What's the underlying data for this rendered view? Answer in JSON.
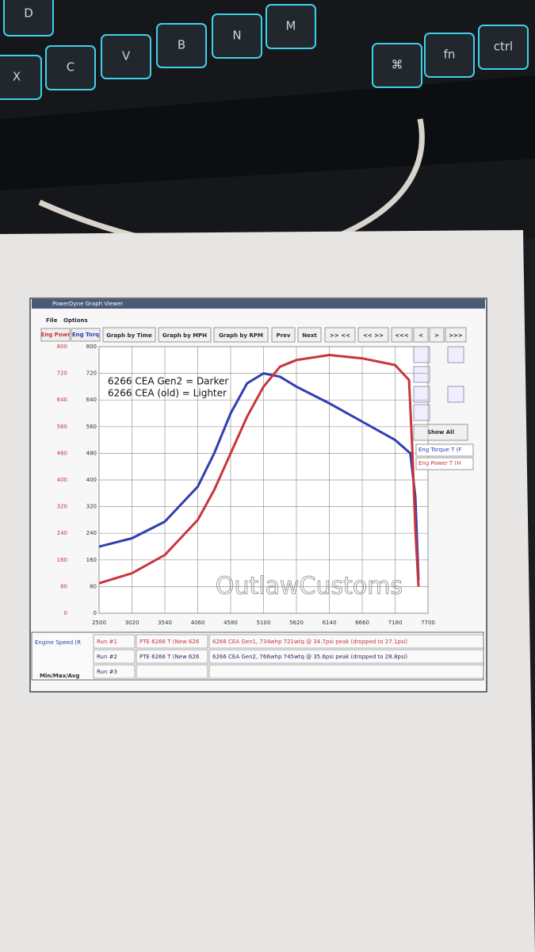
{
  "keyboard": {
    "keys": [
      "D",
      "X",
      "C",
      "V",
      "B",
      "N",
      "M",
      "⌘",
      "fn",
      "ctrl"
    ]
  },
  "window": {
    "title": "PowerDyne Graph Viewer",
    "menu": [
      "File",
      "Options"
    ],
    "axis_buttons": [
      "Eng Powr",
      "Eng Torq"
    ],
    "toolbar": [
      "Graph by Time",
      "Graph by MPH",
      "Graph by RPM",
      "Prev",
      "Next",
      ">> <<",
      "<< >>",
      "<<<",
      "<",
      ">",
      ">>>"
    ],
    "show_all": "Show All",
    "table": {
      "x_channel": "Engine Speed (R",
      "summary": "Min/Max/Avg",
      "rows": [
        [
          "Run #1",
          "PTE 6266 T (New 626",
          "6266 CEA Gen1, 734whp 721wtq @ 34.7psi peak (dropped to 27.1psi)"
        ],
        [
          "Run #2",
          "PTE 6266 T (New 626",
          "6266 CEA Gen2, 766whp 745wtq @ 35.6psi peak (dropped to 28.8psi)"
        ],
        [
          "Run #3",
          "",
          ""
        ]
      ]
    }
  },
  "chart_data": {
    "type": "line",
    "annotations": [
      "6266 CEA Gen2 = Darker",
      "6266 CEA (old) = Lighter"
    ],
    "watermark": "OutlawCustoms",
    "xlim": [
      2500,
      7700
    ],
    "xticks": [
      2500,
      3020,
      3540,
      4060,
      4580,
      5100,
      5620,
      6140,
      6660,
      7180,
      7700
    ],
    "ylim": [
      0,
      800
    ],
    "yticks": [
      0,
      80,
      160,
      240,
      320,
      400,
      480,
      560,
      640,
      720,
      800
    ],
    "y2lim": [
      0,
      800
    ],
    "y2ticks": [
      0,
      80,
      160,
      240,
      320,
      400,
      480,
      560,
      640,
      720,
      800
    ],
    "grid": true,
    "series": [
      {
        "name": "Eng Torque T (F",
        "color": "#2f3fb0",
        "axis": "y2",
        "x": [
          2500,
          3020,
          3540,
          4060,
          4320,
          4580,
          4840,
          5100,
          5360,
          5620,
          6140,
          6660,
          7180,
          7420,
          7500,
          7550
        ],
        "values": [
          200,
          225,
          275,
          380,
          480,
          600,
          690,
          720,
          710,
          680,
          630,
          575,
          520,
          480,
          350,
          100
        ]
      },
      {
        "name": "Eng Power T (H",
        "color": "#c9353b",
        "x": [
          2500,
          3020,
          3540,
          4060,
          4320,
          4580,
          4840,
          5100,
          5360,
          5620,
          6140,
          6660,
          7180,
          7400,
          7450,
          7500,
          7550
        ],
        "values": [
          90,
          120,
          175,
          280,
          370,
          480,
          590,
          680,
          740,
          760,
          775,
          765,
          745,
          700,
          500,
          250,
          80
        ]
      }
    ]
  }
}
